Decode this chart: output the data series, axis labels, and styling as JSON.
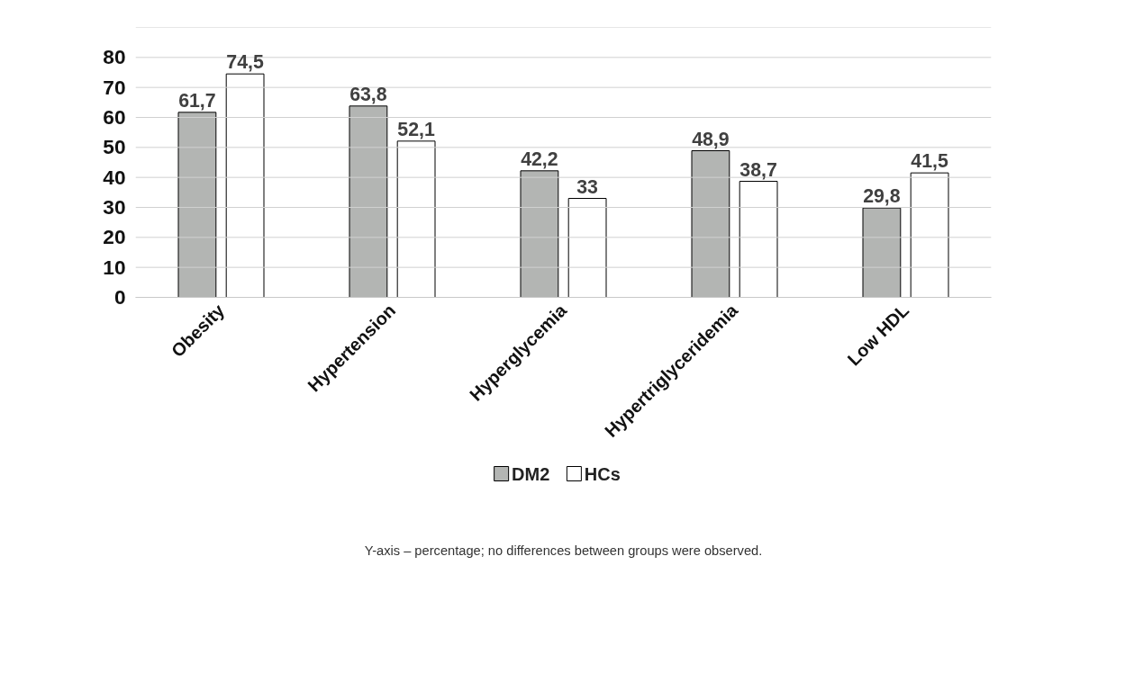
{
  "chart_data": {
    "type": "bar",
    "categories": [
      "Obesity",
      "Hypertension",
      "Hyperglycemia",
      "Hypertriglyceridemia",
      "Low HDL"
    ],
    "series": [
      {
        "name": "DM2",
        "color": "#b3b5b3",
        "values": [
          61.7,
          63.8,
          42.2,
          48.9,
          29.8
        ],
        "value_labels": [
          "61,7",
          "63,8",
          "42,2",
          "48,9",
          "29,8"
        ]
      },
      {
        "name": "HCs",
        "color": "#ffffff",
        "values": [
          74.5,
          52.1,
          33,
          38.7,
          41.5
        ],
        "value_labels": [
          "74,5",
          "52,1",
          "33",
          "38,7",
          "41,5"
        ]
      }
    ],
    "ylim": [
      0,
      90
    ],
    "yticks": [
      0,
      10,
      20,
      30,
      40,
      50,
      60,
      70,
      80,
      {
        "value": 90,
        "label": null
      }
    ],
    "grid": "y",
    "legend": "bottom",
    "annotations": [
      "Y-axis – percentage; no differences between groups were observed."
    ]
  }
}
